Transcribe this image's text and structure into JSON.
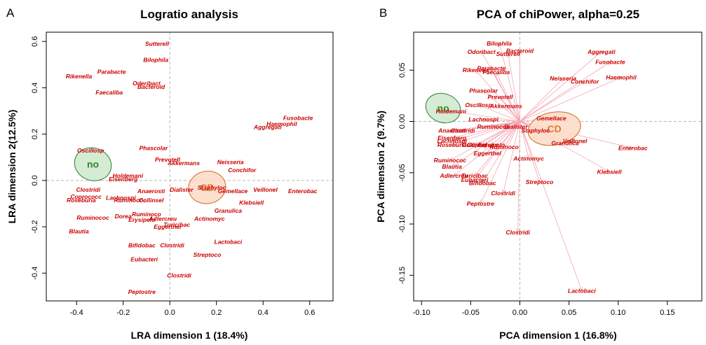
{
  "panels": [
    {
      "letter": "A",
      "title": "Logratio analysis",
      "xlabel": "LRA dimension 1 (18.4%)",
      "ylabel": "LRA dimension 2(12.5%)"
    },
    {
      "letter": "B",
      "title": "PCA of chiPower, alpha=0.25",
      "xlabel": "PCA dimension 1 (16.8%)",
      "ylabel": "PCA dimension 2 (9.7%)"
    }
  ],
  "colors": {
    "label_red": "#cc0000",
    "arrow_pink": "#f4a6b4",
    "reference_line": "#b8b8b8",
    "no_fill": "#cde8cd",
    "no_stroke": "#2e7d32",
    "no_text": "#2e8b2e",
    "cd_fill": "#fbd9c4",
    "cd_stroke": "#d2691e",
    "cd_text": "#e07b39"
  },
  "chart_data": [
    {
      "type": "scatter",
      "title": "Logratio analysis",
      "xlabel": "LRA dimension 1 (18.4%)",
      "ylabel": "LRA dimension 2(12.5%)",
      "xlim": [
        -0.53,
        0.7
      ],
      "ylim": [
        -0.52,
        0.64
      ],
      "xticks": [
        -0.4,
        -0.2,
        0.0,
        0.2,
        0.4,
        0.6
      ],
      "xtick_labels": [
        "-0.4",
        "-0.2",
        "0.0",
        "0.2",
        "0.4",
        "0.6"
      ],
      "yticks": [
        -0.4,
        -0.2,
        0.0,
        0.2,
        0.4,
        0.6
      ],
      "ytick_labels": [
        "-0.4",
        "-0.2",
        "0.0",
        "0.2",
        "0.4",
        "0.6"
      ],
      "reference_lines": {
        "x": 0,
        "y": 0
      },
      "grid": false,
      "groups": [
        {
          "name": "no",
          "x": -0.33,
          "y": 0.07,
          "rx": 0.08,
          "ry": 0.07
        },
        {
          "name": "CD",
          "x": 0.16,
          "y": -0.03,
          "rx": 0.08,
          "ry": 0.07
        }
      ],
      "points": [
        {
          "label": "Sutterell",
          "x": -0.055,
          "y": 0.59
        },
        {
          "label": "Bilophila",
          "x": -0.06,
          "y": 0.52
        },
        {
          "label": "Parabacte",
          "x": -0.25,
          "y": 0.47
        },
        {
          "label": "Rikenella",
          "x": -0.39,
          "y": 0.45
        },
        {
          "label": "Oderibact",
          "x": -0.1,
          "y": 0.42
        },
        {
          "label": "Bacteroid",
          "x": -0.08,
          "y": 0.405
        },
        {
          "label": "Faecaliba",
          "x": -0.26,
          "y": 0.38
        },
        {
          "label": "Fusobacte",
          "x": 0.55,
          "y": 0.27
        },
        {
          "label": "Haemophil",
          "x": 0.48,
          "y": 0.245
        },
        {
          "label": "Aggregati",
          "x": 0.42,
          "y": 0.23
        },
        {
          "label": "Oscillosp",
          "x": -0.34,
          "y": 0.13
        },
        {
          "label": "Phascolar",
          "x": -0.07,
          "y": 0.14
        },
        {
          "label": "Prevotell",
          "x": -0.01,
          "y": 0.09
        },
        {
          "label": "Akkermans",
          "x": 0.06,
          "y": 0.075
        },
        {
          "label": "Neisseria",
          "x": 0.26,
          "y": 0.08
        },
        {
          "label": "Conchifor",
          "x": 0.31,
          "y": 0.045
        },
        {
          "label": "Holdemani",
          "x": -0.18,
          "y": 0.02
        },
        {
          "label": "Eisenberg",
          "x": -0.2,
          "y": 0.005
        },
        {
          "label": "Clostridi",
          "x": -0.35,
          "y": -0.04
        },
        {
          "label": "Anaerosti",
          "x": -0.08,
          "y": -0.045
        },
        {
          "label": "Dialister",
          "x": 0.05,
          "y": -0.04
        },
        {
          "label": "Staphyloc",
          "x": 0.18,
          "y": -0.03
        },
        {
          "label": "Gemellace",
          "x": 0.27,
          "y": -0.045
        },
        {
          "label": "Veillonel",
          "x": 0.41,
          "y": -0.04
        },
        {
          "label": "Enterobac",
          "x": 0.57,
          "y": -0.045
        },
        {
          "label": "Coprococc",
          "x": -0.36,
          "y": -0.07
        },
        {
          "label": "Lachnospi",
          "x": -0.21,
          "y": -0.075
        },
        {
          "label": "Roseburia",
          "x": -0.38,
          "y": -0.085
        },
        {
          "label": "Ruminococ",
          "x": -0.17,
          "y": -0.085
        },
        {
          "label": "Collinsel",
          "x": -0.08,
          "y": -0.085
        },
        {
          "label": "Klebsiell",
          "x": 0.35,
          "y": -0.095
        },
        {
          "label": "Granulica",
          "x": 0.25,
          "y": -0.13
        },
        {
          "label": "Ruminococ",
          "x": -0.33,
          "y": -0.16
        },
        {
          "label": "Dorea",
          "x": -0.2,
          "y": -0.155
        },
        {
          "label": "Ruminoco",
          "x": -0.1,
          "y": -0.145
        },
        {
          "label": "Erysipelo",
          "x": -0.12,
          "y": -0.17
        },
        {
          "label": "Adlercreu",
          "x": -0.03,
          "y": -0.165
        },
        {
          "label": "Actinomyc",
          "x": 0.17,
          "y": -0.165
        },
        {
          "label": "Turicibac",
          "x": 0.03,
          "y": -0.19
        },
        {
          "label": "Eggerthel",
          "x": -0.01,
          "y": -0.2
        },
        {
          "label": "Blautia",
          "x": -0.39,
          "y": -0.22
        },
        {
          "label": "Lactobaci",
          "x": 0.25,
          "y": -0.265
        },
        {
          "label": "Bifidobac",
          "x": -0.12,
          "y": -0.28
        },
        {
          "label": "Clostridi",
          "x": 0.01,
          "y": -0.28
        },
        {
          "label": "Streptoco",
          "x": 0.16,
          "y": -0.32
        },
        {
          "label": "Eubacteri",
          "x": -0.11,
          "y": -0.34
        },
        {
          "label": "Clostridi",
          "x": 0.04,
          "y": -0.41
        },
        {
          "label": "Peptostre",
          "x": -0.12,
          "y": -0.48
        }
      ]
    },
    {
      "type": "scatter",
      "title": "PCA of chiPower, alpha=0.25",
      "xlabel": "PCA dimension 1 (16.8%)",
      "ylabel": "PCA dimension 2 (9.7%)",
      "xlim": [
        -0.108,
        0.185
      ],
      "ylim": [
        -0.175,
        0.087
      ],
      "xticks": [
        -0.1,
        -0.05,
        0.0,
        0.05,
        0.1,
        0.15
      ],
      "xtick_labels": [
        "-0.10",
        "-0.05",
        "0.00",
        "0.05",
        "0.10",
        "0.15"
      ],
      "yticks": [
        -0.15,
        -0.1,
        -0.05,
        0.0,
        0.05
      ],
      "ytick_labels": [
        "-0.15",
        "-0.10",
        "-0.05",
        "0.00",
        "0.05"
      ],
      "reference_lines": {
        "x": 0,
        "y": 0
      },
      "grid": false,
      "arrows_from_origin": true,
      "groups": [
        {
          "name": "no",
          "x": -0.078,
          "y": 0.013,
          "rx": 0.018,
          "ry": 0.014
        },
        {
          "name": "CD",
          "x": 0.035,
          "y": -0.007,
          "rx": 0.027,
          "ry": 0.016
        }
      ],
      "points": [
        {
          "label": "Bilophila",
          "x": -0.021,
          "y": 0.076
        },
        {
          "label": "Odoribact",
          "x": -0.039,
          "y": 0.068
        },
        {
          "label": "Bacteroid",
          "x": 0.0,
          "y": 0.069
        },
        {
          "label": "Sutterell",
          "x": -0.012,
          "y": 0.066
        },
        {
          "label": "Aggregati",
          "x": 0.083,
          "y": 0.068
        },
        {
          "label": "Fusobacte",
          "x": 0.092,
          "y": 0.058
        },
        {
          "label": "Parabacte",
          "x": -0.029,
          "y": 0.052
        },
        {
          "label": "Rikenella",
          "x": -0.045,
          "y": 0.05
        },
        {
          "label": "Faecaliba",
          "x": -0.024,
          "y": 0.048
        },
        {
          "label": "Haemophil",
          "x": 0.103,
          "y": 0.043
        },
        {
          "label": "Neisseria",
          "x": 0.044,
          "y": 0.042
        },
        {
          "label": "Conchifor",
          "x": 0.066,
          "y": 0.039
        },
        {
          "label": "Phascolar",
          "x": -0.037,
          "y": 0.03
        },
        {
          "label": "Prevotell",
          "x": -0.02,
          "y": 0.024
        },
        {
          "label": "Oscillosp",
          "x": -0.042,
          "y": 0.016
        },
        {
          "label": "Akkermans",
          "x": -0.014,
          "y": 0.015
        },
        {
          "label": "Holdemani",
          "x": -0.07,
          "y": 0.01
        },
        {
          "label": "Gemellace",
          "x": 0.032,
          "y": 0.003
        },
        {
          "label": "Lachnospi",
          "x": -0.037,
          "y": 0.002
        },
        {
          "label": "Ruminococ",
          "x": -0.027,
          "y": -0.005
        },
        {
          "label": "Dialister",
          "x": -0.004,
          "y": -0.005
        },
        {
          "label": "Staphyloc",
          "x": 0.016,
          "y": -0.009
        },
        {
          "label": "Anaerosti",
          "x": -0.069,
          "y": -0.009
        },
        {
          "label": "Clostridi",
          "x": -0.058,
          "y": -0.009
        },
        {
          "label": "Eisenberg",
          "x": -0.069,
          "y": -0.016
        },
        {
          "label": "Lachnospi",
          "x": -0.069,
          "y": -0.019
        },
        {
          "label": "Roseburia",
          "x": -0.069,
          "y": -0.023
        },
        {
          "label": "Collinsel",
          "x": -0.046,
          "y": -0.023
        },
        {
          "label": "Coprococc",
          "x": -0.038,
          "y": -0.023
        },
        {
          "label": "Erysipelo",
          "x": -0.029,
          "y": -0.023
        },
        {
          "label": "Ruminoco",
          "x": -0.016,
          "y": -0.025
        },
        {
          "label": "Granulica",
          "x": 0.046,
          "y": -0.021
        },
        {
          "label": "Veillonel",
          "x": 0.056,
          "y": -0.019
        },
        {
          "label": "Enterobac",
          "x": 0.115,
          "y": -0.026
        },
        {
          "label": "Eggerthel",
          "x": -0.033,
          "y": -0.031
        },
        {
          "label": "Actinomyc",
          "x": 0.009,
          "y": -0.036
        },
        {
          "label": "Ruminococ",
          "x": -0.071,
          "y": -0.038
        },
        {
          "label": "Blautia",
          "x": -0.069,
          "y": -0.044
        },
        {
          "label": "Klebsiell",
          "x": 0.091,
          "y": -0.049
        },
        {
          "label": "Adlercreu",
          "x": -0.067,
          "y": -0.053
        },
        {
          "label": "Turicibac",
          "x": -0.046,
          "y": -0.053
        },
        {
          "label": "Eubacteri",
          "x": -0.046,
          "y": -0.057
        },
        {
          "label": "Bifidobac",
          "x": -0.038,
          "y": -0.06
        },
        {
          "label": "Streptoco",
          "x": 0.02,
          "y": -0.059
        },
        {
          "label": "Clostridi",
          "x": -0.017,
          "y": -0.07
        },
        {
          "label": "Peptostre",
          "x": -0.04,
          "y": -0.08
        },
        {
          "label": "Clostridi",
          "x": -0.002,
          "y": -0.108
        },
        {
          "label": "Lactobaci",
          "x": 0.063,
          "y": -0.165
        }
      ]
    }
  ]
}
